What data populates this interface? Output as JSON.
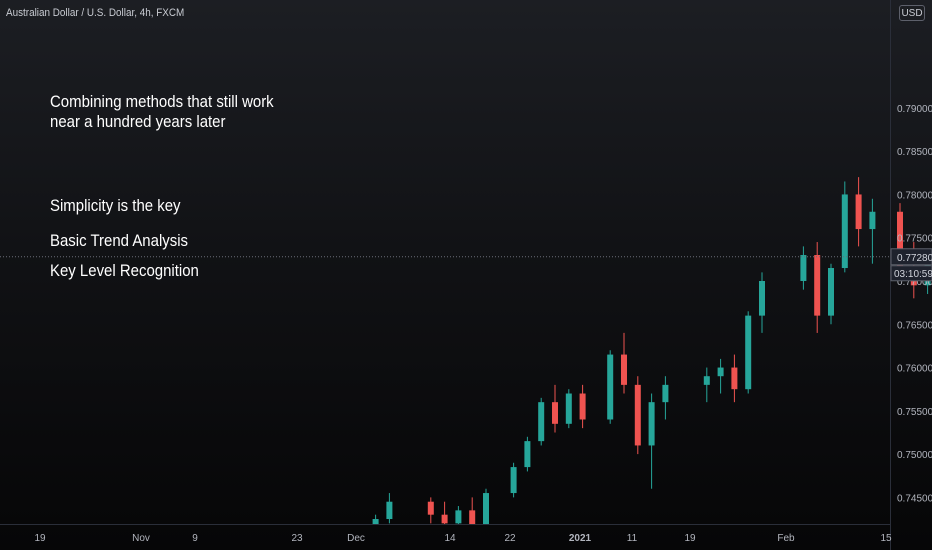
{
  "header": {
    "symbol_text": "Australian Dollar / U.S. Dollar, 4h, FXCM"
  },
  "currency_button": "USD",
  "annotations": [
    "Combining methods that still work",
    "near a hundred years later",
    "Simplicity is the key",
    "Basic Trend Analysis",
    "Key Level Recognition"
  ],
  "chart_data": {
    "type": "candlestick",
    "title": "",
    "xlabel": "",
    "ylabel": "",
    "ylim": [
      0.741,
      0.799
    ],
    "y_ticks": [
      "0.79000",
      "0.78500",
      "0.78000",
      "0.77500",
      "0.77000",
      "0.76500",
      "0.76000",
      "0.75500",
      "0.75000",
      "0.74500"
    ],
    "x_ticks": [
      "19",
      "Nov",
      "9",
      "23",
      "Dec",
      "14",
      "22",
      "2021",
      "11",
      "19",
      "Feb",
      "15"
    ],
    "last_price": "0.77280",
    "countdown": "03:10:59",
    "grid": false,
    "colors": {
      "up": "#26a69a",
      "down": "#ef5350",
      "text": "#b2b5be"
    },
    "series": [
      {
        "x": "2020-12-01",
        "ohlc": [
          0.74,
          0.7415,
          0.7395,
          0.741
        ]
      },
      {
        "x": "2020-12-03",
        "ohlc": [
          0.741,
          0.743,
          0.74,
          0.7425
        ]
      },
      {
        "x": "2020-12-04",
        "ohlc": [
          0.7425,
          0.7455,
          0.742,
          0.7445
        ]
      },
      {
        "x": "2020-12-07",
        "ohlc": [
          0.7445,
          0.745,
          0.742,
          0.743
        ]
      },
      {
        "x": "2020-12-08",
        "ohlc": [
          0.743,
          0.7445,
          0.7415,
          0.742
        ]
      },
      {
        "x": "2020-12-09",
        "ohlc": [
          0.742,
          0.744,
          0.7405,
          0.7435
        ]
      },
      {
        "x": "2020-12-10",
        "ohlc": [
          0.7435,
          0.745,
          0.741,
          0.7415
        ]
      },
      {
        "x": "2020-12-11",
        "ohlc": [
          0.7415,
          0.746,
          0.741,
          0.7455
        ]
      },
      {
        "x": "2020-12-13",
        "ohlc": [
          0.7455,
          0.749,
          0.745,
          0.7485
        ]
      },
      {
        "x": "2020-12-14",
        "ohlc": [
          0.7485,
          0.752,
          0.748,
          0.7515
        ]
      },
      {
        "x": "2020-12-15",
        "ohlc": [
          0.7515,
          0.7565,
          0.751,
          0.756
        ]
      },
      {
        "x": "2020-12-16",
        "ohlc": [
          0.756,
          0.758,
          0.7525,
          0.7535
        ]
      },
      {
        "x": "2020-12-17",
        "ohlc": [
          0.7535,
          0.7575,
          0.753,
          0.757
        ]
      },
      {
        "x": "2020-12-18",
        "ohlc": [
          0.757,
          0.758,
          0.753,
          0.754
        ]
      },
      {
        "x": "2020-12-20",
        "ohlc": [
          0.754,
          0.762,
          0.7535,
          0.7615
        ]
      },
      {
        "x": "2020-12-21",
        "ohlc": [
          0.7615,
          0.764,
          0.757,
          0.758
        ]
      },
      {
        "x": "2020-12-22",
        "ohlc": [
          0.758,
          0.759,
          0.75,
          0.751
        ]
      },
      {
        "x": "2020-12-23",
        "ohlc": [
          0.751,
          0.757,
          0.746,
          0.756
        ]
      },
      {
        "x": "2020-12-24",
        "ohlc": [
          0.756,
          0.759,
          0.754,
          0.758
        ]
      },
      {
        "x": "2020-12-27",
        "ohlc": [
          0.758,
          0.76,
          0.756,
          0.759
        ]
      },
      {
        "x": "2020-12-28",
        "ohlc": [
          0.759,
          0.761,
          0.757,
          0.76
        ]
      },
      {
        "x": "2020-12-29",
        "ohlc": [
          0.76,
          0.7615,
          0.756,
          0.7575
        ]
      },
      {
        "x": "2020-12-30",
        "ohlc": [
          0.7575,
          0.7665,
          0.757,
          0.766
        ]
      },
      {
        "x": "2020-12-31",
        "ohlc": [
          0.766,
          0.771,
          0.764,
          0.77
        ]
      },
      {
        "x": "2021-01-03",
        "ohlc": [
          0.77,
          0.774,
          0.769,
          0.773
        ]
      },
      {
        "x": "2021-01-04",
        "ohlc": [
          0.773,
          0.7745,
          0.764,
          0.766
        ]
      },
      {
        "x": "2021-01-05",
        "ohlc": [
          0.766,
          0.772,
          0.765,
          0.7715
        ]
      },
      {
        "x": "2021-01-06",
        "ohlc": [
          0.7715,
          0.7815,
          0.771,
          0.78
        ]
      },
      {
        "x": "2021-01-07",
        "ohlc": [
          0.78,
          0.782,
          0.774,
          0.776
        ]
      },
      {
        "x": "2021-01-08",
        "ohlc": [
          0.776,
          0.7795,
          0.772,
          0.778
        ]
      },
      {
        "x": "2021-01-10",
        "ohlc": [
          0.778,
          0.779,
          0.77,
          0.7715
        ]
      },
      {
        "x": "2021-01-11",
        "ohlc": [
          0.7715,
          0.7745,
          0.768,
          0.7695
        ]
      },
      {
        "x": "2021-01-12",
        "ohlc": [
          0.7695,
          0.773,
          0.7685,
          0.772
        ]
      },
      {
        "x": "2021-01-13",
        "ohlc": [
          0.772,
          0.774,
          0.769,
          0.77
        ]
      },
      {
        "x": "2021-01-14",
        "ohlc": [
          0.77,
          0.776,
          0.7695,
          0.775
        ]
      },
      {
        "x": "2021-01-15",
        "ohlc": [
          0.775,
          0.78,
          0.774,
          0.778
        ]
      },
      {
        "x": "2021-01-17",
        "ohlc": [
          0.778,
          0.779,
          0.771,
          0.772
        ]
      },
      {
        "x": "2021-01-18",
        "ohlc": [
          0.772,
          0.773,
          0.7665,
          0.768
        ]
      },
      {
        "x": "2021-01-19",
        "ohlc": [
          0.768,
          0.773,
          0.7675,
          0.7725
        ]
      },
      {
        "x": "2021-01-20",
        "ohlc": [
          0.7725,
          0.778,
          0.772,
          0.777
        ]
      },
      {
        "x": "2021-01-21",
        "ohlc": [
          0.777,
          0.7785,
          0.7745,
          0.776
        ]
      },
      {
        "x": "2021-01-22",
        "ohlc": [
          0.776,
          0.777,
          0.77,
          0.771
        ]
      },
      {
        "x": "2021-01-24",
        "ohlc": [
          0.771,
          0.774,
          0.769,
          0.773
        ]
      },
      {
        "x": "2021-01-25",
        "ohlc": [
          0.773,
          0.7745,
          0.768,
          0.77
        ]
      },
      {
        "x": "2021-01-26",
        "ohlc": [
          0.77,
          0.773,
          0.767,
          0.772
        ]
      },
      {
        "x": "2021-01-27",
        "ohlc": [
          0.772,
          0.7765,
          0.7715,
          0.7755
        ]
      },
      {
        "x": "2021-01-28",
        "ohlc": [
          0.7755,
          0.7765,
          0.772,
          0.7728
        ]
      }
    ]
  }
}
